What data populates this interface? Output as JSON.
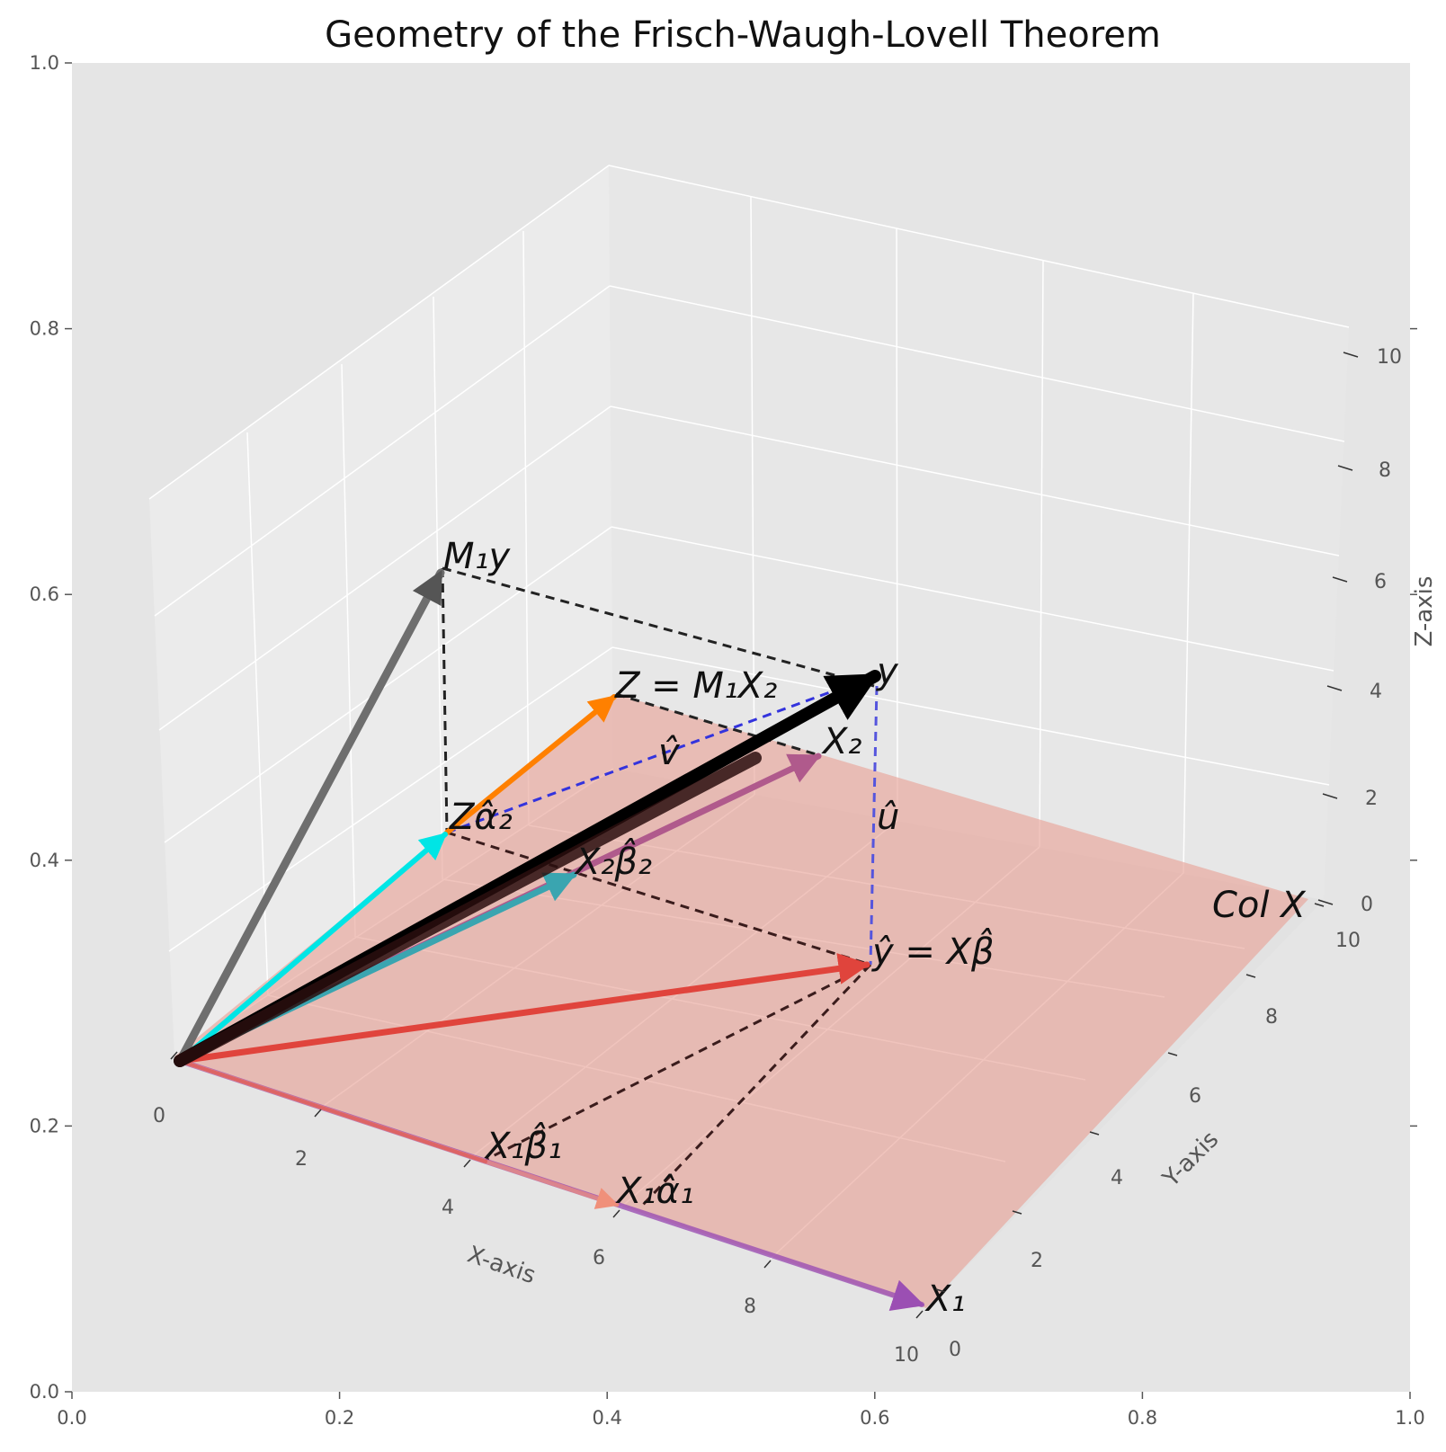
{
  "title": "Geometry of the Frisch-Waugh-Lovell Theorem",
  "axes2d": {
    "x_ticks": [
      "0.0",
      "0.2",
      "0.4",
      "0.6",
      "0.8",
      "1.0"
    ],
    "y_ticks": [
      "0.0",
      "0.2",
      "0.4",
      "0.6",
      "0.8",
      "1.0"
    ]
  },
  "axes3d": {
    "x_label": "X-axis",
    "y_label": "Y-axis",
    "z_label": "Z-axis",
    "x_ticks": [
      "0",
      "2",
      "4",
      "6",
      "8",
      "10"
    ],
    "y_ticks": [
      "0",
      "2",
      "4",
      "6",
      "8",
      "10"
    ],
    "z_ticks": [
      "0",
      "2",
      "4",
      "6",
      "8",
      "10"
    ]
  },
  "plane_label": "Col X",
  "colors": {
    "y": "#000000",
    "M1y": "#6e6e6e",
    "X1": "#9b4fb3",
    "X2": "#b05a8c",
    "Z": "#ff8000",
    "Zalpha2": "#00e5e5",
    "X2beta2": "#3aa5b0",
    "yhat": "#e0443c",
    "plane": "#e8a49a",
    "residual": "#3333dd",
    "dashed": "#222222"
  },
  "vectors": [
    {
      "id": "X1",
      "label": "X₁"
    },
    {
      "id": "X2",
      "label": "X₂"
    },
    {
      "id": "y",
      "label": "y"
    },
    {
      "id": "M1y",
      "label": "M₁y"
    },
    {
      "id": "Z",
      "label": "Z = M₁X₂"
    },
    {
      "id": "Zalpha2",
      "label": "Zα̂₂"
    },
    {
      "id": "X2beta2",
      "label": "X₂β̂₂"
    },
    {
      "id": "X1beta1",
      "label": "X₁β̂₁"
    },
    {
      "id": "X1alpha1",
      "label": "X₁α̂₁"
    },
    {
      "id": "yhat",
      "label": "ŷ = Xβ̂"
    }
  ],
  "residuals": {
    "u_hat": "û",
    "v_hat": "v̂"
  }
}
